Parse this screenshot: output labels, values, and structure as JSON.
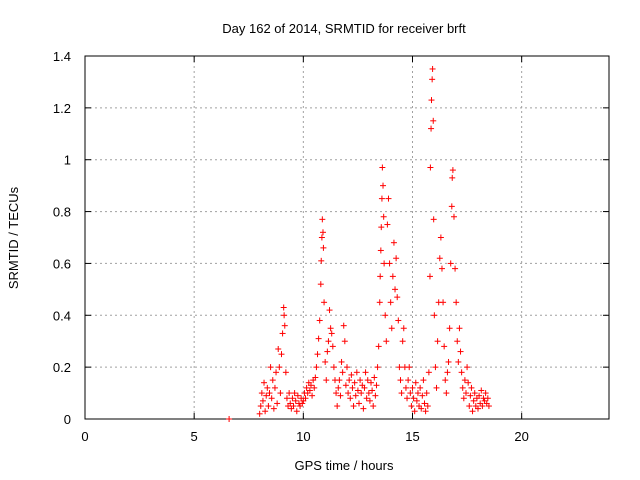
{
  "chart_data": {
    "type": "scatter",
    "title": "Day 162 of 2014, SRMTID for receiver brft",
    "xlabel": "GPS time / hours",
    "ylabel": "SRMTID / TECUs",
    "xlim": [
      0,
      24
    ],
    "ylim": [
      0,
      1.4
    ],
    "x_ticks": [
      0,
      5,
      10,
      15,
      20
    ],
    "y_ticks": [
      0,
      0.2,
      0.4,
      0.6,
      0.8,
      1,
      1.2,
      1.4
    ],
    "x_tick_labels": [
      "0",
      "5",
      "10",
      "15",
      "20"
    ],
    "y_tick_labels": [
      "0",
      "0.2",
      "0.4",
      "0.6",
      "0.8",
      "1",
      "1.2",
      "1.4"
    ],
    "grid": true,
    "marker": "+",
    "color": "#ff0000",
    "series": [
      {
        "name": "SRMTID",
        "points": [
          [
            6.6,
            0.0
          ],
          [
            8.0,
            0.02
          ],
          [
            8.05,
            0.05
          ],
          [
            8.1,
            0.1
          ],
          [
            8.15,
            0.07
          ],
          [
            8.2,
            0.14
          ],
          [
            8.25,
            0.03
          ],
          [
            8.3,
            0.09
          ],
          [
            8.35,
            0.12
          ],
          [
            8.4,
            0.05
          ],
          [
            8.45,
            0.1
          ],
          [
            8.5,
            0.2
          ],
          [
            8.55,
            0.08
          ],
          [
            8.6,
            0.15
          ],
          [
            8.65,
            0.04
          ],
          [
            8.7,
            0.12
          ],
          [
            8.75,
            0.18
          ],
          [
            8.8,
            0.06
          ],
          [
            8.85,
            0.27
          ],
          [
            8.9,
            0.2
          ],
          [
            8.95,
            0.1
          ],
          [
            9.0,
            0.25
          ],
          [
            9.05,
            0.33
          ],
          [
            9.1,
            0.43
          ],
          [
            9.12,
            0.4
          ],
          [
            9.15,
            0.36
          ],
          [
            9.2,
            0.18
          ],
          [
            9.25,
            0.08
          ],
          [
            9.3,
            0.05
          ],
          [
            9.35,
            0.1
          ],
          [
            9.4,
            0.06
          ],
          [
            9.45,
            0.04
          ],
          [
            9.5,
            0.08
          ],
          [
            9.55,
            0.05
          ],
          [
            9.6,
            0.1
          ],
          [
            9.65,
            0.07
          ],
          [
            9.7,
            0.03
          ],
          [
            9.75,
            0.09
          ],
          [
            9.8,
            0.06
          ],
          [
            9.85,
            0.05
          ],
          [
            9.9,
            0.08
          ],
          [
            9.95,
            0.06
          ],
          [
            10.0,
            0.07
          ],
          [
            10.05,
            0.1
          ],
          [
            10.1,
            0.08
          ],
          [
            10.15,
            0.12
          ],
          [
            10.2,
            0.1
          ],
          [
            10.25,
            0.14
          ],
          [
            10.3,
            0.11
          ],
          [
            10.35,
            0.13
          ],
          [
            10.4,
            0.09
          ],
          [
            10.45,
            0.15
          ],
          [
            10.5,
            0.12
          ],
          [
            10.55,
            0.16
          ],
          [
            10.6,
            0.2
          ],
          [
            10.65,
            0.25
          ],
          [
            10.7,
            0.31
          ],
          [
            10.75,
            0.38
          ],
          [
            10.8,
            0.52
          ],
          [
            10.82,
            0.61
          ],
          [
            10.85,
            0.7
          ],
          [
            10.87,
            0.77
          ],
          [
            10.9,
            0.72
          ],
          [
            10.92,
            0.66
          ],
          [
            10.95,
            0.45
          ],
          [
            11.0,
            0.22
          ],
          [
            11.05,
            0.15
          ],
          [
            11.1,
            0.26
          ],
          [
            11.15,
            0.3
          ],
          [
            11.2,
            0.42
          ],
          [
            11.25,
            0.35
          ],
          [
            11.3,
            0.33
          ],
          [
            11.35,
            0.28
          ],
          [
            11.4,
            0.2
          ],
          [
            11.45,
            0.15
          ],
          [
            11.5,
            0.1
          ],
          [
            11.55,
            0.05
          ],
          [
            11.6,
            0.12
          ],
          [
            11.65,
            0.15
          ],
          [
            11.7,
            0.09
          ],
          [
            11.75,
            0.22
          ],
          [
            11.8,
            0.18
          ],
          [
            11.85,
            0.36
          ],
          [
            11.9,
            0.3
          ],
          [
            11.95,
            0.13
          ],
          [
            12.0,
            0.2
          ],
          [
            12.05,
            0.1
          ],
          [
            12.1,
            0.15
          ],
          [
            12.15,
            0.08
          ],
          [
            12.2,
            0.17
          ],
          [
            12.25,
            0.12
          ],
          [
            12.3,
            0.05
          ],
          [
            12.35,
            0.14
          ],
          [
            12.4,
            0.09
          ],
          [
            12.45,
            0.18
          ],
          [
            12.5,
            0.11
          ],
          [
            12.55,
            0.06
          ],
          [
            12.6,
            0.15
          ],
          [
            12.65,
            0.1
          ],
          [
            12.7,
            0.13
          ],
          [
            12.75,
            0.04
          ],
          [
            12.8,
            0.12
          ],
          [
            12.85,
            0.18
          ],
          [
            12.9,
            0.08
          ],
          [
            12.95,
            0.15
          ],
          [
            13.0,
            0.1
          ],
          [
            13.05,
            0.07
          ],
          [
            13.1,
            0.14
          ],
          [
            13.15,
            0.11
          ],
          [
            13.2,
            0.05
          ],
          [
            13.25,
            0.16
          ],
          [
            13.3,
            0.09
          ],
          [
            13.35,
            0.13
          ],
          [
            13.4,
            0.2
          ],
          [
            13.45,
            0.28
          ],
          [
            13.5,
            0.45
          ],
          [
            13.52,
            0.55
          ],
          [
            13.55,
            0.65
          ],
          [
            13.57,
            0.74
          ],
          [
            13.6,
            0.85
          ],
          [
            13.62,
            0.97
          ],
          [
            13.65,
            0.9
          ],
          [
            13.68,
            0.78
          ],
          [
            13.7,
            0.6
          ],
          [
            13.75,
            0.4
          ],
          [
            13.8,
            0.3
          ],
          [
            13.85,
            0.75
          ],
          [
            13.9,
            0.85
          ],
          [
            13.95,
            0.6
          ],
          [
            14.0,
            0.45
          ],
          [
            14.05,
            0.35
          ],
          [
            14.1,
            0.55
          ],
          [
            14.15,
            0.68
          ],
          [
            14.2,
            0.5
          ],
          [
            14.25,
            0.62
          ],
          [
            14.3,
            0.47
          ],
          [
            14.35,
            0.38
          ],
          [
            14.4,
            0.2
          ],
          [
            14.45,
            0.15
          ],
          [
            14.5,
            0.1
          ],
          [
            14.55,
            0.3
          ],
          [
            14.6,
            0.35
          ],
          [
            14.65,
            0.2
          ],
          [
            14.7,
            0.12
          ],
          [
            14.75,
            0.08
          ],
          [
            14.8,
            0.15
          ],
          [
            14.85,
            0.2
          ],
          [
            14.9,
            0.1
          ],
          [
            14.95,
            0.05
          ],
          [
            15.0,
            0.12
          ],
          [
            15.05,
            0.08
          ],
          [
            15.1,
            0.03
          ],
          [
            15.15,
            0.14
          ],
          [
            15.2,
            0.07
          ],
          [
            15.25,
            0.1
          ],
          [
            15.3,
            0.05
          ],
          [
            15.35,
            0.12
          ],
          [
            15.4,
            0.04
          ],
          [
            15.45,
            0.09
          ],
          [
            15.5,
            0.15
          ],
          [
            15.55,
            0.06
          ],
          [
            15.6,
            0.03
          ],
          [
            15.65,
            0.1
          ],
          [
            15.7,
            0.05
          ],
          [
            15.75,
            0.18
          ],
          [
            15.8,
            0.55
          ],
          [
            15.82,
            0.97
          ],
          [
            15.85,
            1.12
          ],
          [
            15.87,
            1.23
          ],
          [
            15.9,
            1.31
          ],
          [
            15.92,
            1.35
          ],
          [
            15.95,
            1.15
          ],
          [
            15.97,
            0.77
          ],
          [
            16.0,
            0.4
          ],
          [
            16.05,
            0.2
          ],
          [
            16.1,
            0.12
          ],
          [
            16.15,
            0.3
          ],
          [
            16.2,
            0.45
          ],
          [
            16.25,
            0.62
          ],
          [
            16.3,
            0.7
          ],
          [
            16.35,
            0.58
          ],
          [
            16.4,
            0.45
          ],
          [
            16.45,
            0.28
          ],
          [
            16.5,
            0.15
          ],
          [
            16.55,
            0.1
          ],
          [
            16.6,
            0.18
          ],
          [
            16.65,
            0.22
          ],
          [
            16.7,
            0.35
          ],
          [
            16.75,
            0.6
          ],
          [
            16.8,
            0.82
          ],
          [
            16.82,
            0.93
          ],
          [
            16.85,
            0.96
          ],
          [
            16.9,
            0.78
          ],
          [
            16.95,
            0.58
          ],
          [
            17.0,
            0.45
          ],
          [
            17.05,
            0.3
          ],
          [
            17.1,
            0.22
          ],
          [
            17.15,
            0.35
          ],
          [
            17.2,
            0.26
          ],
          [
            17.25,
            0.18
          ],
          [
            17.3,
            0.12
          ],
          [
            17.35,
            0.08
          ],
          [
            17.4,
            0.15
          ],
          [
            17.45,
            0.1
          ],
          [
            17.5,
            0.2
          ],
          [
            17.55,
            0.14
          ],
          [
            17.6,
            0.05
          ],
          [
            17.65,
            0.09
          ],
          [
            17.7,
            0.12
          ],
          [
            17.75,
            0.03
          ],
          [
            17.8,
            0.07
          ],
          [
            17.85,
            0.1
          ],
          [
            17.9,
            0.05
          ],
          [
            17.95,
            0.08
          ],
          [
            18.0,
            0.04
          ],
          [
            18.05,
            0.09
          ],
          [
            18.1,
            0.06
          ],
          [
            18.15,
            0.11
          ],
          [
            18.2,
            0.05
          ],
          [
            18.25,
            0.08
          ],
          [
            18.3,
            0.07
          ],
          [
            18.35,
            0.1
          ],
          [
            18.4,
            0.06
          ],
          [
            18.45,
            0.08
          ],
          [
            18.5,
            0.05
          ]
        ]
      }
    ]
  }
}
